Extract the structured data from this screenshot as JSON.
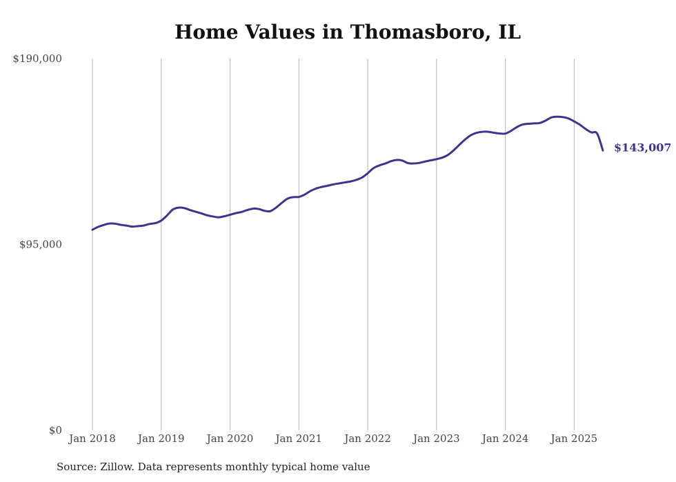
{
  "chart_data": {
    "type": "line",
    "title": "Home Values in Thomasboro, IL",
    "source": "Source: Zillow. Data represents monthly typical home value",
    "ylim": [
      0,
      190000
    ],
    "y_ticks": [
      0,
      95000,
      190000
    ],
    "y_tick_labels": [
      "$0",
      "$95,000",
      "$190,000"
    ],
    "x_range": [
      "2018-01",
      "2025-06"
    ],
    "x_ticks": [
      "2018-01",
      "2019-01",
      "2020-01",
      "2021-01",
      "2022-01",
      "2023-01",
      "2024-01",
      "2025-01"
    ],
    "x_tick_labels": [
      "Jan 2018",
      "Jan 2019",
      "Jan 2020",
      "Jan 2021",
      "Jan 2022",
      "Jan 2023",
      "Jan 2024",
      "Jan 2025"
    ],
    "grid": "vertical",
    "line_color": "#3b3591",
    "end_label": "$143,007",
    "series": [
      {
        "x": [
          "2018-01",
          "2018-02",
          "2018-03",
          "2018-04",
          "2018-05",
          "2018-06",
          "2018-07",
          "2018-08",
          "2018-09",
          "2018-10",
          "2018-11",
          "2018-12",
          "2019-01",
          "2019-02",
          "2019-03",
          "2019-04",
          "2019-05",
          "2019-06",
          "2019-07",
          "2019-08",
          "2019-09",
          "2019-10",
          "2019-11",
          "2019-12",
          "2020-01",
          "2020-02",
          "2020-03",
          "2020-04",
          "2020-05",
          "2020-06",
          "2020-07",
          "2020-08",
          "2020-09",
          "2020-10",
          "2020-11",
          "2020-12",
          "2021-01",
          "2021-02",
          "2021-03",
          "2021-04",
          "2021-05",
          "2021-06",
          "2021-07",
          "2021-08",
          "2021-09",
          "2021-10",
          "2021-11",
          "2021-12",
          "2022-01",
          "2022-02",
          "2022-03",
          "2022-04",
          "2022-05",
          "2022-06",
          "2022-07",
          "2022-08",
          "2022-09",
          "2022-10",
          "2022-11",
          "2022-12",
          "2023-01",
          "2023-02",
          "2023-03",
          "2023-04",
          "2023-05",
          "2023-06",
          "2023-07",
          "2023-08",
          "2023-09",
          "2023-10",
          "2023-11",
          "2023-12",
          "2024-01",
          "2024-02",
          "2024-03",
          "2024-04",
          "2024-05",
          "2024-06",
          "2024-07",
          "2024-08",
          "2024-09",
          "2024-10",
          "2024-11",
          "2024-12",
          "2025-01",
          "2025-02",
          "2025-03",
          "2025-04",
          "2025-05",
          "2025-06"
        ],
        "values": [
          102500,
          104000,
          105000,
          105700,
          105600,
          105000,
          104600,
          104100,
          104400,
          104700,
          105500,
          105900,
          107200,
          109800,
          112800,
          113800,
          113600,
          112600,
          111700,
          110900,
          109900,
          109300,
          108900,
          109400,
          110200,
          111000,
          111600,
          112600,
          113300,
          113100,
          112200,
          112000,
          113800,
          116200,
          118400,
          119200,
          119300,
          120500,
          122300,
          123600,
          124400,
          125000,
          125700,
          126200,
          126700,
          127200,
          128000,
          129200,
          131400,
          134000,
          135400,
          136300,
          137500,
          138200,
          137900,
          136600,
          136400,
          136700,
          137400,
          138000,
          138600,
          139400,
          140800,
          143200,
          146000,
          148700,
          150900,
          152100,
          152600,
          152600,
          152100,
          151700,
          151700,
          153100,
          155000,
          156300,
          156700,
          156900,
          157100,
          158300,
          159900,
          160300,
          160100,
          159400,
          157900,
          156200,
          154000,
          152300,
          151700,
          143007
        ]
      }
    ]
  }
}
